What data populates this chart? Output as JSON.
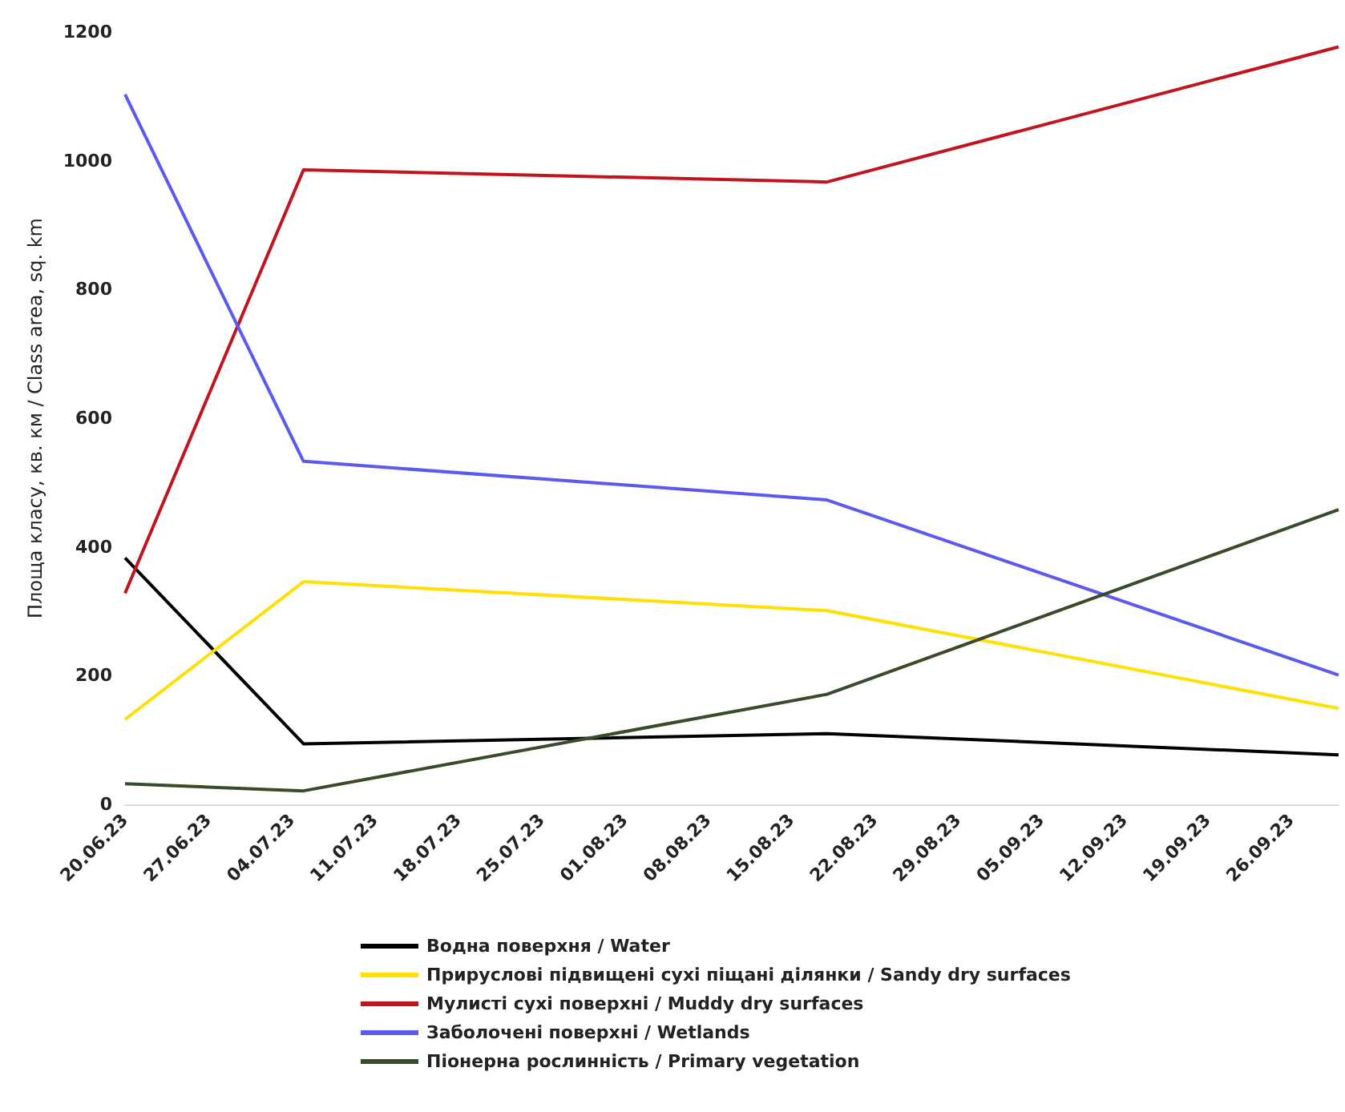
{
  "chart_data": {
    "type": "line",
    "ylabel": "Площа класу, кв. км / Class area, sq. km",
    "x": [
      "--06-20",
      "--07-05",
      "--08-18",
      "--09-30"
    ],
    "xlim": [
      "--06-20",
      "--09-30"
    ],
    "xticks": [
      {
        "value": "--06-20",
        "label": "20.06.23"
      },
      {
        "value": "--06-27",
        "label": "27.06.23"
      },
      {
        "value": "--07-04",
        "label": "04.07.23"
      },
      {
        "value": "--07-11",
        "label": "11.07.23"
      },
      {
        "value": "--07-18",
        "label": "18.07.23"
      },
      {
        "value": "--07-25",
        "label": "25.07.23"
      },
      {
        "value": "--08-01",
        "label": "01.08.23"
      },
      {
        "value": "--08-08",
        "label": "08.08.23"
      },
      {
        "value": "--08-15",
        "label": "15.08.23"
      },
      {
        "value": "--08-22",
        "label": "22.08.23"
      },
      {
        "value": "--08-29",
        "label": "29.08.23"
      },
      {
        "value": "--09-05",
        "label": "05.09.23"
      },
      {
        "value": "--09-12",
        "label": "12.09.23"
      },
      {
        "value": "--09-19",
        "label": "19.09.23"
      },
      {
        "value": "--09-26",
        "label": "26.09.23"
      }
    ],
    "ylim": [
      0,
      1200
    ],
    "yticks": [
      0,
      200,
      400,
      600,
      800,
      1000,
      1200
    ],
    "grid": false,
    "legend": "bottom",
    "marker": "none",
    "series": [
      {
        "name": "Водна поверхня / Water",
        "color": "#000000",
        "values": [
          383,
          94,
          110,
          77
        ]
      },
      {
        "name": "Прируслові підвищені сухі піщані ділянки / Sandy dry surfaces",
        "color": "#ffe000",
        "values": [
          132,
          346,
          301,
          149
        ]
      },
      {
        "name": "Мулисті сухі поверхні / Muddy dry surfaces",
        "color": "#c0141e",
        "values": [
          328,
          986,
          967,
          1177
        ]
      },
      {
        "name": "Заболочені поверхні / Wetlands",
        "color": "#5a5af0",
        "values": [
          1103,
          533,
          473,
          201
        ]
      },
      {
        "name": "Піонерна рослинність / Primary vegetation",
        "color": "#3a4a2a",
        "values": [
          32,
          21,
          171,
          458
        ]
      }
    ]
  }
}
